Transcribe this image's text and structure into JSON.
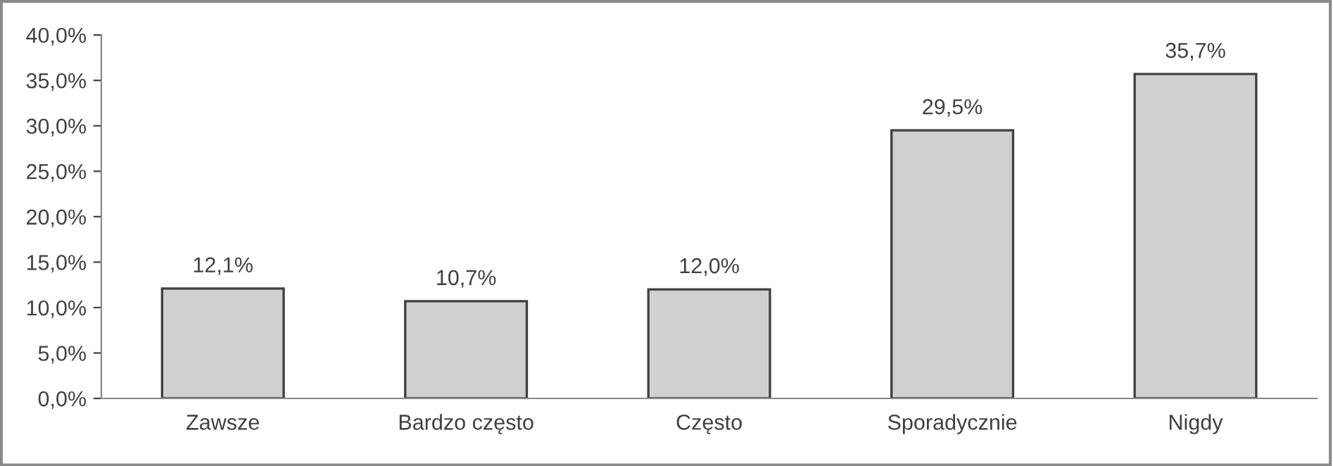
{
  "chart_data": {
    "type": "bar",
    "categories": [
      "Zawsze",
      "Bardzo często",
      "Często",
      "Sporadycznie",
      "Nigdy"
    ],
    "values": [
      12.1,
      10.7,
      12.0,
      29.5,
      35.7
    ],
    "value_labels": [
      "12,1%",
      "10,7%",
      "12,0%",
      "29,5%",
      "35,7%"
    ],
    "color": "#d0d0d0",
    "ylim": [
      0,
      40
    ],
    "yticks": [
      {
        "value": 0,
        "label": "0,0%"
      },
      {
        "value": 5,
        "label": "5,0%"
      },
      {
        "value": 10,
        "label": "10,0%"
      },
      {
        "value": 15,
        "label": "15,0%"
      },
      {
        "value": 20,
        "label": "20,0%"
      },
      {
        "value": 25,
        "label": "25,0%"
      },
      {
        "value": 30,
        "label": "30,0%"
      },
      {
        "value": 35,
        "label": "35,0%"
      },
      {
        "value": 40,
        "label": "40,0%"
      }
    ],
    "grid": false,
    "legend": false
  }
}
